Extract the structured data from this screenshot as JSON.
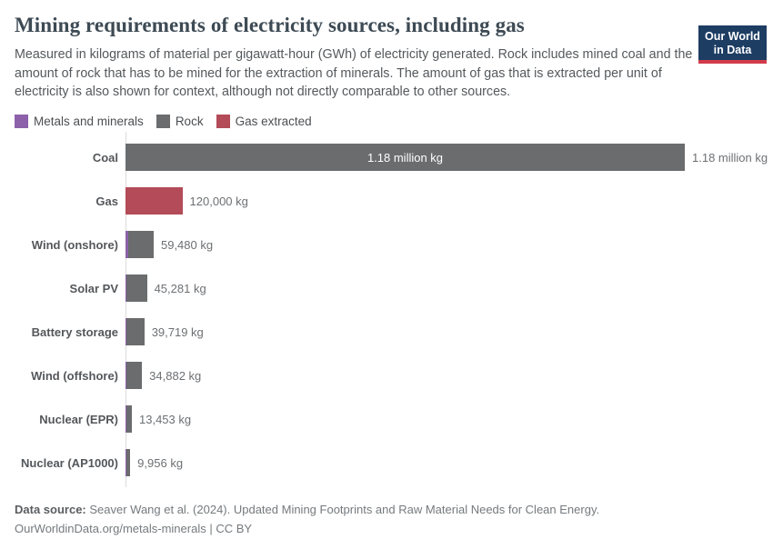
{
  "header": {
    "title": "Mining requirements of electricity sources, including gas",
    "subtitle": "Measured in kilograms of material per gigawatt-hour (GWh) of electricity generated. Rock includes mined coal and the amount of rock that has to be mined for the extraction of minerals. The amount of gas that is extracted per unit of electricity is also shown for context, although not directly comparable to other sources.",
    "logo": {
      "line1": "Our World",
      "line2": "in Data",
      "bg_color": "#1d3d63",
      "accent_color": "#d23b4b"
    }
  },
  "chart_data": {
    "type": "bar",
    "orientation": "horizontal",
    "value_suffix": "kg",
    "xlim": [
      0,
      1180000
    ],
    "grid": false,
    "legend_position": "top",
    "legend": [
      {
        "label": "Metals and minerals",
        "color": "#8c61aa"
      },
      {
        "label": "Rock",
        "color": "#6a6c6e"
      },
      {
        "label": "Gas extracted",
        "color": "#b34b58"
      }
    ],
    "rows": [
      {
        "label": "Coal",
        "total_kg": 1180000,
        "metals_kg_est": 0,
        "main_series": "Rock",
        "value_label": "1.18 million kg",
        "inside_label": "1.18 million kg"
      },
      {
        "label": "Gas",
        "total_kg": 120000,
        "metals_kg_est": 0,
        "main_series": "Gas extracted",
        "value_label": "120,000 kg"
      },
      {
        "label": "Wind (onshore)",
        "total_kg": 59480,
        "metals_kg_est": 6500,
        "main_series": "Rock",
        "value_label": "59,480 kg"
      },
      {
        "label": "Solar PV",
        "total_kg": 45281,
        "metals_kg_est": 2000,
        "main_series": "Rock",
        "value_label": "45,281 kg"
      },
      {
        "label": "Battery storage",
        "total_kg": 39719,
        "metals_kg_est": 1100,
        "main_series": "Rock",
        "value_label": "39,719 kg"
      },
      {
        "label": "Wind (offshore)",
        "total_kg": 34882,
        "metals_kg_est": 2800,
        "main_series": "Rock",
        "value_label": "34,882 kg"
      },
      {
        "label": "Nuclear (EPR)",
        "total_kg": 13453,
        "metals_kg_est": 1300,
        "main_series": "Rock",
        "value_label": "13,453 kg"
      },
      {
        "label": "Nuclear (AP1000)",
        "total_kg": 9956,
        "metals_kg_est": 1000,
        "main_series": "Rock",
        "value_label": "9,956 kg"
      }
    ]
  },
  "footer": {
    "data_source_label": "Data source:",
    "data_source_text": " Seaver Wang et al. (2024). Updated Mining Footprints and Raw Material Needs for Clean Energy.",
    "link_text": "OurWorldinData.org/metals-minerals | CC BY"
  }
}
